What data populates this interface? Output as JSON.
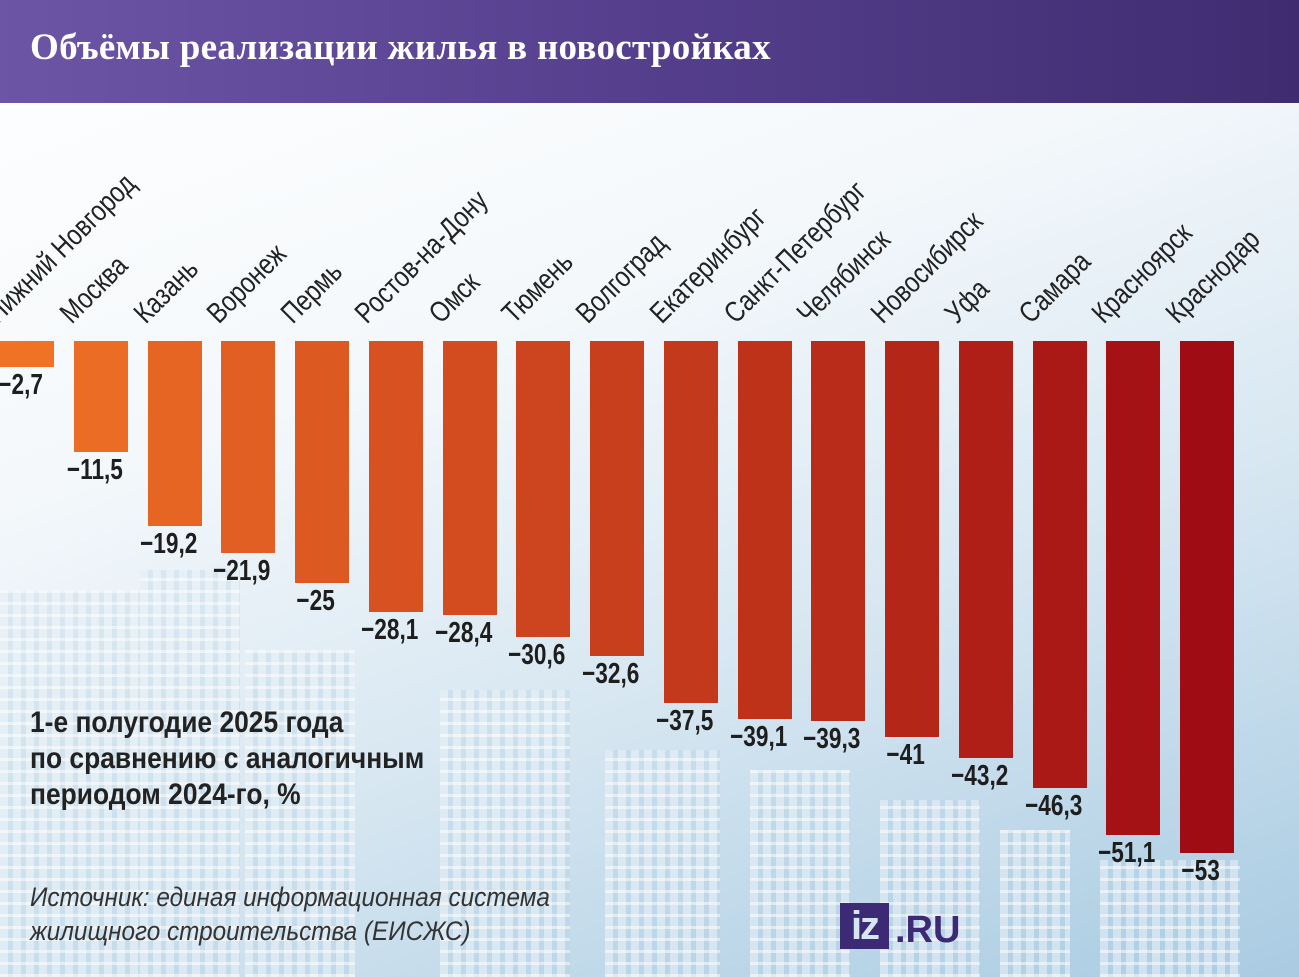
{
  "title": "Объёмы реализации жилья в новостройках",
  "subtitle_lines": [
    "1-е полугодие 2025 года",
    "по сравнению с аналогичным",
    "периодом 2024-го, %"
  ],
  "source_lines": [
    "Источник: единая информационная система",
    "жилищного строительства (ЕИСЖС)"
  ],
  "logo": {
    "box": "iz",
    "suffix": ".RU"
  },
  "colors": {
    "start": "#f07225",
    "end": "#a00c14",
    "header": "#553f8d"
  },
  "chart_data": {
    "type": "bar",
    "title": "Объёмы реализации жилья в новостройках",
    "categories": [
      "Нижний Новгород",
      "Москва",
      "Казань",
      "Воронеж",
      "Пермь",
      "Ростов-на-Дону",
      "Омск",
      "Тюмень",
      "Волгоград",
      "Екатеринбург",
      "Санкт-Петербург",
      "Челябинск",
      "Новосибирск",
      "Уфа",
      "Самара",
      "Красноярск",
      "Краснодар"
    ],
    "values": [
      -2.7,
      -11.5,
      -19.2,
      -21.9,
      -25,
      -28.1,
      -28.4,
      -30.6,
      -32.6,
      -37.5,
      -39.1,
      -39.3,
      -41,
      -43.2,
      -46.3,
      -51.1,
      -53
    ],
    "value_labels": [
      "−2,7",
      "−11,5",
      "−19,2",
      "−21,9",
      "−25",
      "−28,1",
      "−28,4",
      "−30,6",
      "−32,6",
      "−37,5",
      "−39,1",
      "−39,3",
      "−41",
      "−43,2",
      "−46,3",
      "−51,1",
      "−53"
    ],
    "ylim": [
      -53,
      0
    ],
    "grid": false,
    "legend": "none"
  }
}
